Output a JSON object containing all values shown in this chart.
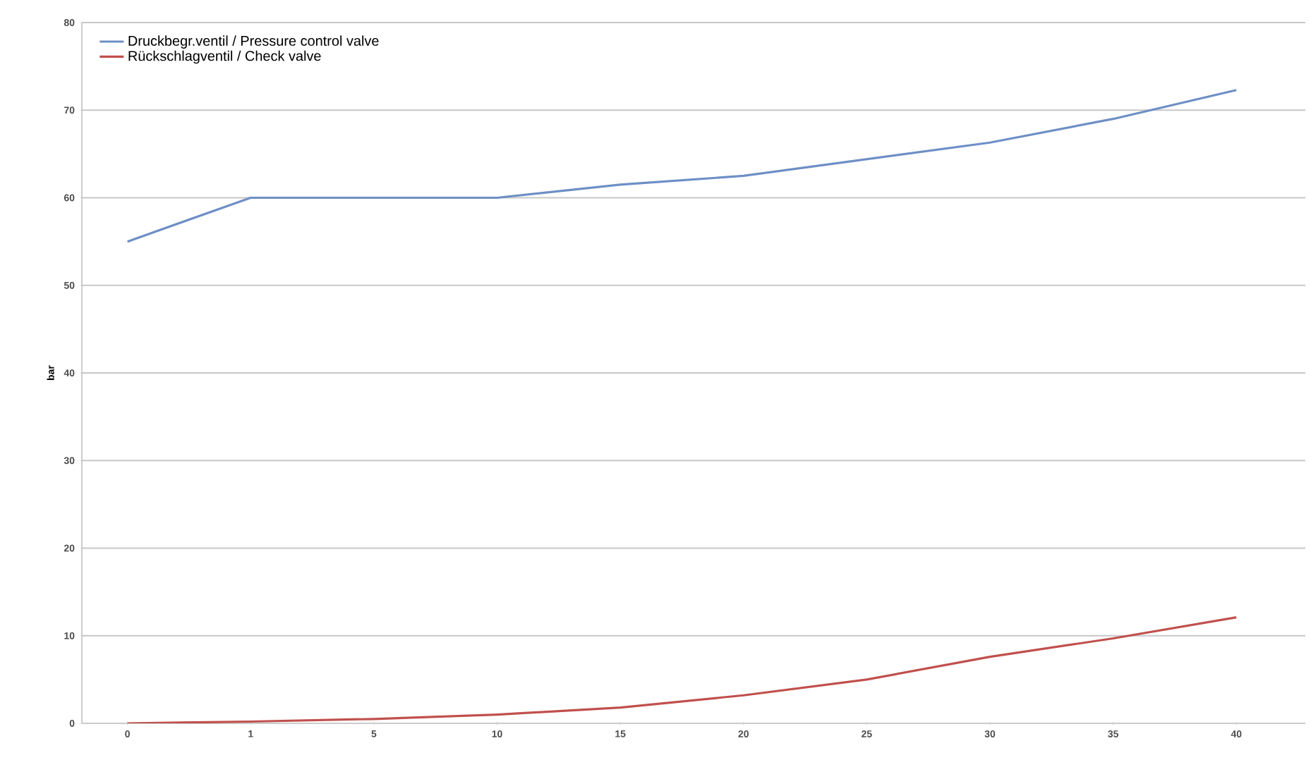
{
  "chart_data": {
    "type": "line",
    "ylabel": "bar",
    "categories": [
      "0",
      "1",
      "5",
      "10",
      "15",
      "20",
      "25",
      "30",
      "35",
      "40"
    ],
    "series": [
      {
        "name": "Druckbegr.ventil / Pressure control valve",
        "color": "#6e8fc6",
        "values": [
          55,
          60,
          60,
          60,
          61.5,
          62.5,
          64.4,
          66.3,
          69,
          72.3
        ]
      },
      {
        "name": "Rückschlagventil / Check valve",
        "color": "#c0504d",
        "values": [
          0,
          0.2,
          0.5,
          1,
          1.8,
          3.2,
          5,
          7.6,
          9.7,
          12.1
        ]
      }
    ],
    "ylim": [
      0,
      80
    ],
    "yticks": [
      0,
      10,
      20,
      30,
      40,
      50,
      60,
      70,
      80
    ],
    "grid": "y",
    "legend": "top left"
  }
}
